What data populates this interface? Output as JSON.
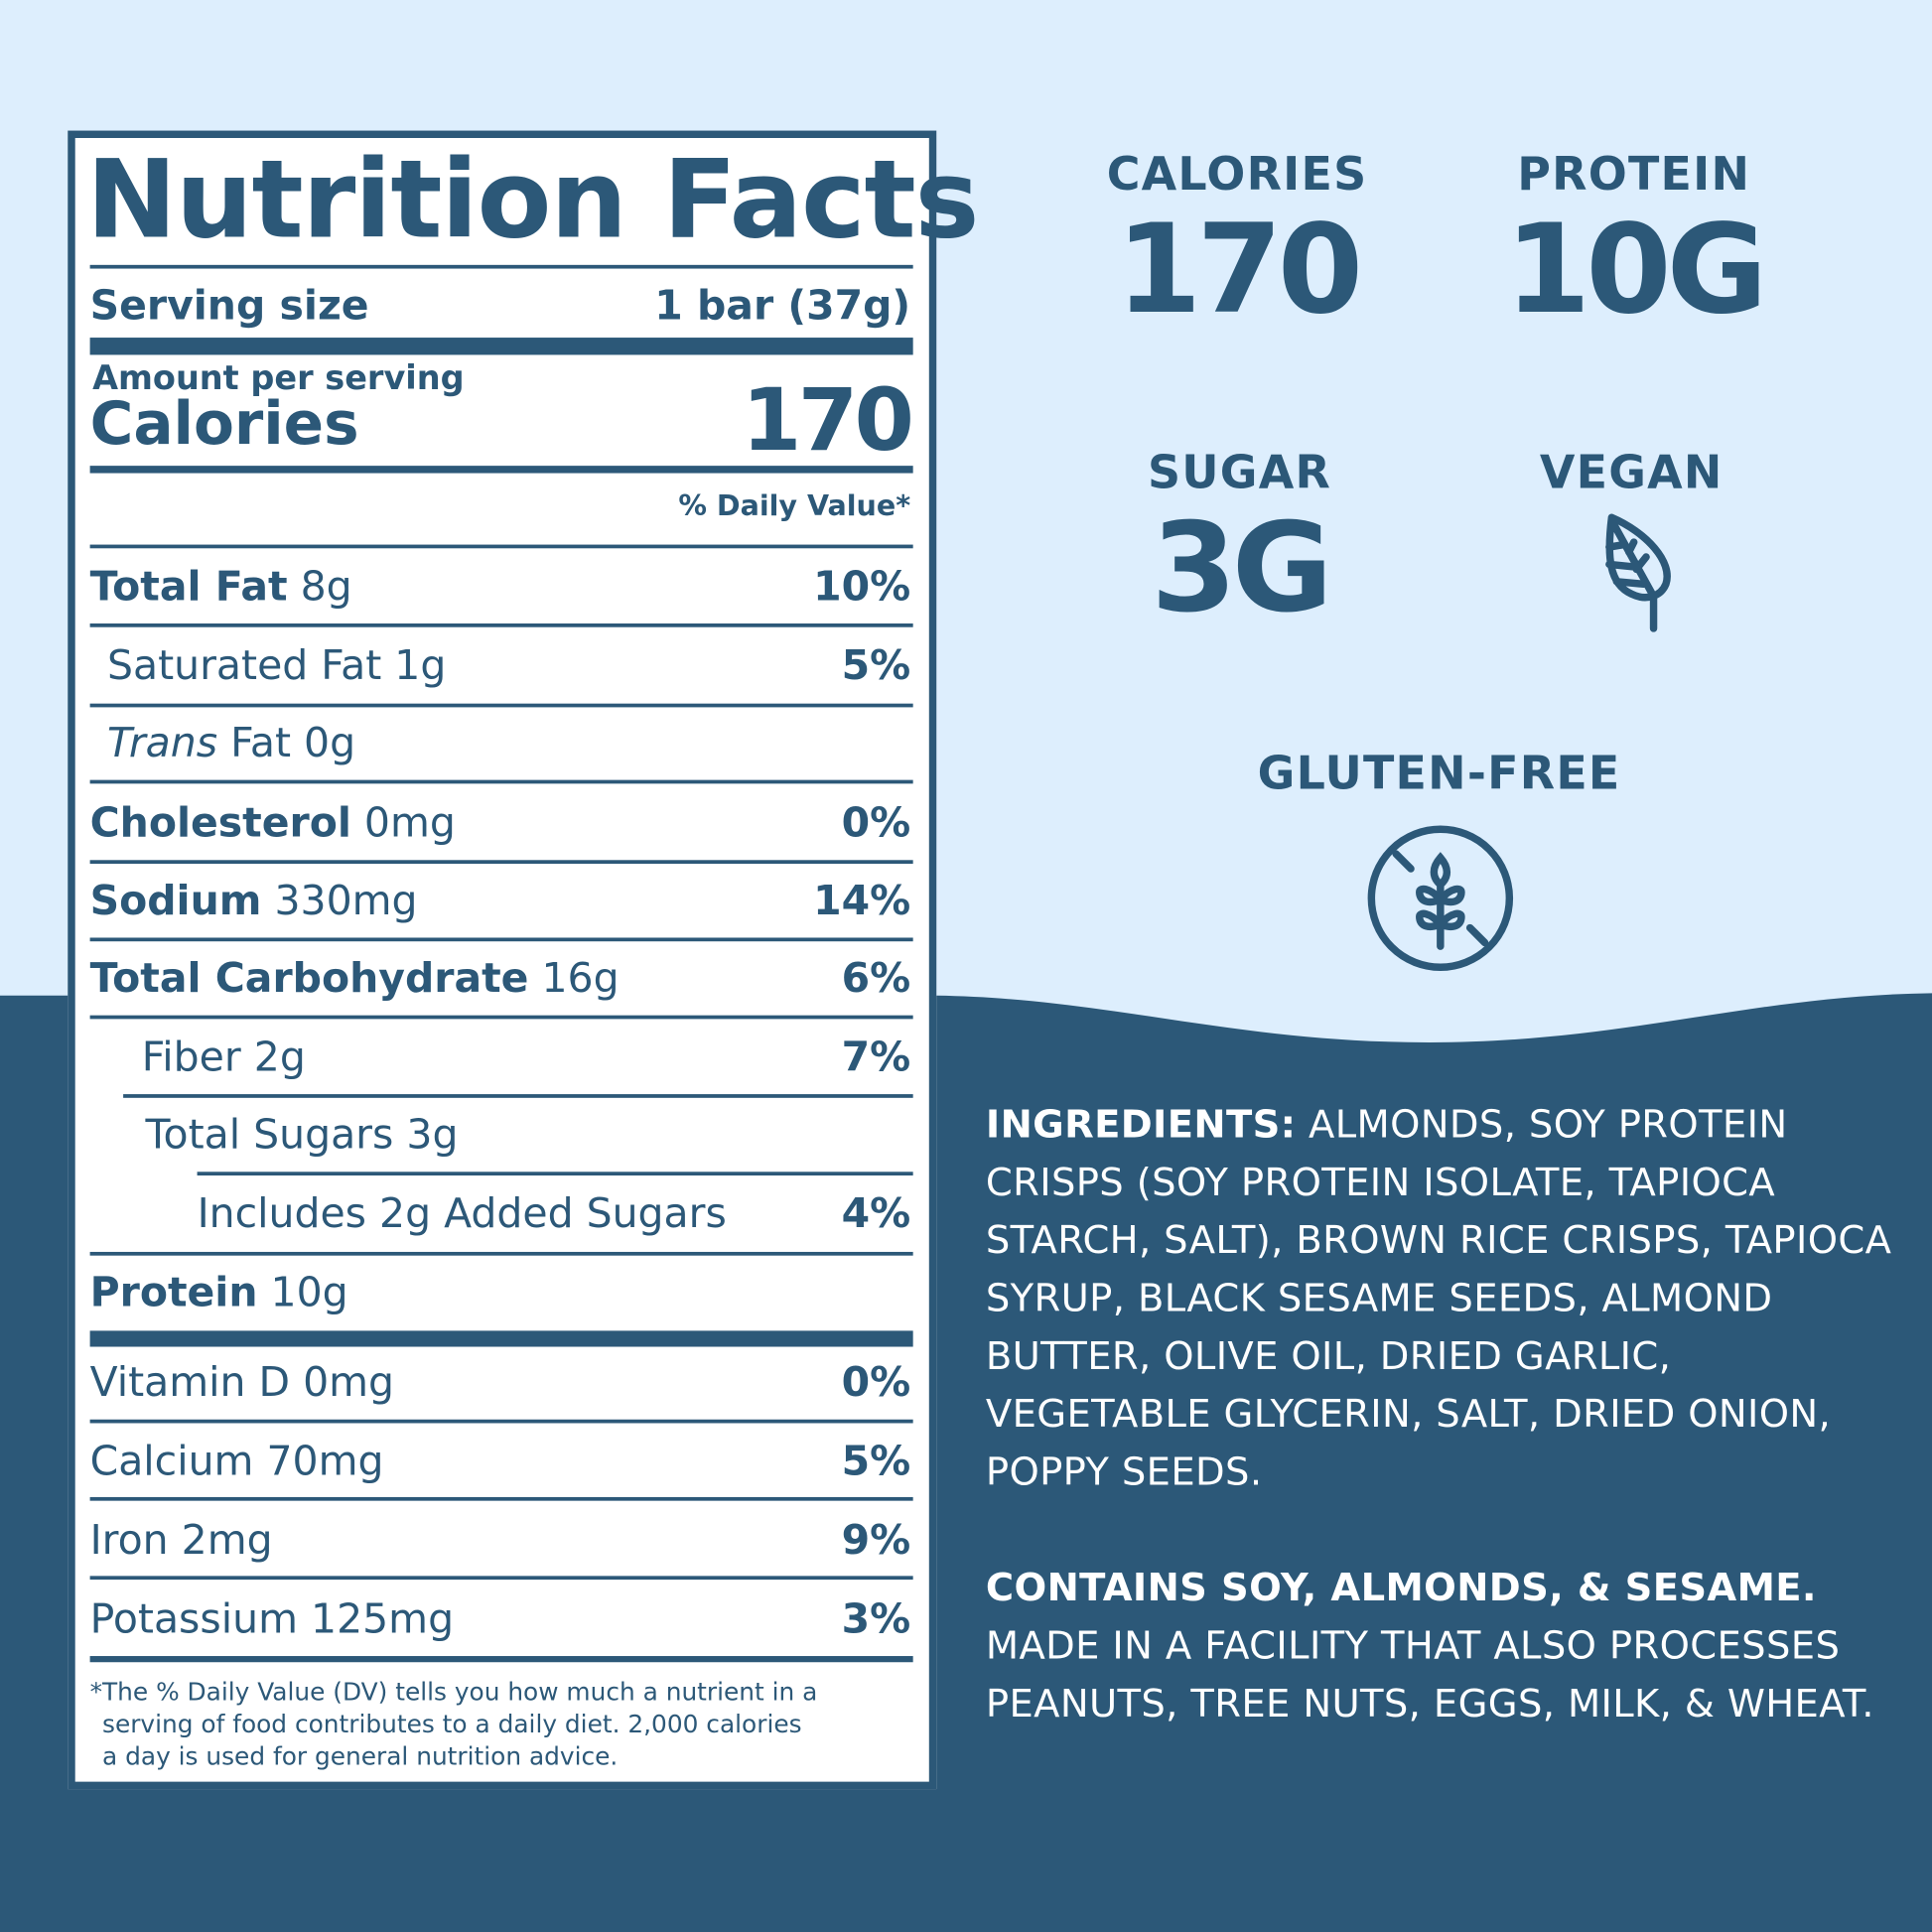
{
  "colors": {
    "primary": "#2c5878",
    "background_light": "#ddeefd",
    "white": "#ffffff"
  },
  "label": {
    "title": "Nutrition Facts",
    "serving_size_label": "Serving size",
    "serving_size_value": "1 bar (37g)",
    "amount_per_serving": "Amount per serving",
    "calories_label": "Calories",
    "calories_value": "170",
    "daily_value_header": "% Daily Value*",
    "nutrients": [
      {
        "name": "Total Fat",
        "amount": "8g",
        "dv": "10%"
      },
      {
        "name": "Saturated Fat",
        "amount": "1g",
        "dv": "5%"
      },
      {
        "name": "Trans",
        "amount": "Fat 0g",
        "dv": ""
      },
      {
        "name": "Cholesterol",
        "amount": "0mg",
        "dv": "0%"
      },
      {
        "name": "Sodium",
        "amount": "330mg",
        "dv": "14%"
      },
      {
        "name": "Total Carbohydrate",
        "amount": "16g",
        "dv": "6%"
      },
      {
        "name": "Fiber",
        "amount": "2g",
        "dv": "7%"
      },
      {
        "name": "Total Sugars",
        "amount": "3g",
        "dv": ""
      },
      {
        "name": "Includes 2g Added Sugars",
        "amount": "",
        "dv": "4%"
      },
      {
        "name": "Protein",
        "amount": "10g",
        "dv": ""
      },
      {
        "name": "Vitamin D",
        "amount": "0mg",
        "dv": "0%"
      },
      {
        "name": "Calcium",
        "amount": "70mg",
        "dv": "5%"
      },
      {
        "name": "Iron",
        "amount": "2mg",
        "dv": "9%"
      },
      {
        "name": "Potassium",
        "amount": "125mg",
        "dv": "3%"
      }
    ],
    "footnote": [
      "*The % Daily Value (DV) tells you how much a nutrient in a",
      "serving of food contributes to a daily diet. 2,000 calories",
      "a day is used for general nutrition advice."
    ]
  },
  "highlights": [
    {
      "label": "CALORIES",
      "value": "170"
    },
    {
      "label": "PROTEIN",
      "value": "10G"
    },
    {
      "label": "SUGAR",
      "value": "3G"
    },
    {
      "label": "VEGAN",
      "icon": "leaf-icon"
    },
    {
      "label": "GLUTEN-FREE",
      "icon": "no-wheat-icon"
    }
  ],
  "ingredients": {
    "heading": "INGREDIENTS:",
    "text": "ALMONDS, SOY PROTEIN CRISPS (SOY PROTEIN ISOLATE, TAPIOCA STARCH, SALT), BROWN RICE CRISPS, TAPIOCA SYRUP, BLACK SESAME SEEDS, ALMOND BUTTER, OLIVE OIL, DRIED GARLIC, VEGETABLE GLYCERIN, SALT, DRIED ONION, POPPY SEEDS.",
    "allergen_heading": "CONTAINS SOY, ALMONDS, & SESAME.",
    "allergen_text": "MADE IN A FACILITY THAT ALSO PROCESSES PEANUTS, TREE NUTS, EGGS, MILK, & WHEAT."
  }
}
